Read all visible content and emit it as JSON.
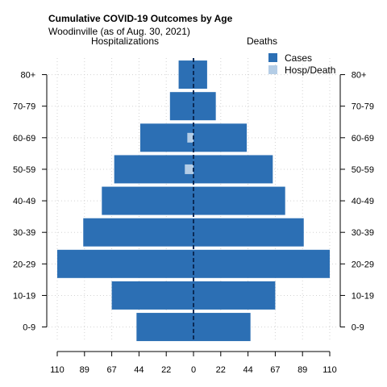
{
  "chart_data": {
    "type": "bar",
    "title": "Cumulative COVID-19 Outcomes by Age",
    "subtitle": "Woodinville (as of Aug. 30, 2021)",
    "left_panel_label": "Hospitalizations",
    "right_panel_label": "Deaths",
    "categories": [
      "0-9",
      "10-19",
      "20-29",
      "30-39",
      "40-49",
      "50-59",
      "60-69",
      "70-79",
      "80+"
    ],
    "x_tick_labels": [
      "110",
      "89",
      "67",
      "44",
      "22",
      "0",
      "22",
      "44",
      "67",
      "89",
      "110"
    ],
    "xlim": [
      -110,
      110
    ],
    "series": [
      {
        "name": "Cases",
        "side": "left",
        "color": "#2c6fb4",
        "values": [
          46,
          66,
          110,
          89,
          74,
          64,
          43,
          19,
          12
        ]
      },
      {
        "name": "Cases",
        "side": "right",
        "color": "#2c6fb4",
        "values": [
          46,
          66,
          110,
          89,
          74,
          64,
          43,
          18,
          11
        ]
      },
      {
        "name": "Hosp/Death",
        "side": "left",
        "color": "#b4cde6",
        "values": [
          0,
          0,
          0,
          0,
          0,
          7,
          5,
          0,
          0
        ]
      },
      {
        "name": "Hosp/Death",
        "side": "right",
        "color": "#b4cde6",
        "values": [
          0,
          0,
          0,
          0,
          0,
          0,
          0,
          0,
          0
        ]
      }
    ],
    "legend": {
      "position": "top-right",
      "entries": [
        {
          "label": "Cases",
          "color": "#2c6fb4"
        },
        {
          "label": "Hosp/Death",
          "color": "#b4cde6"
        }
      ]
    },
    "grid": true,
    "center_line_color": "#0b2b57"
  }
}
